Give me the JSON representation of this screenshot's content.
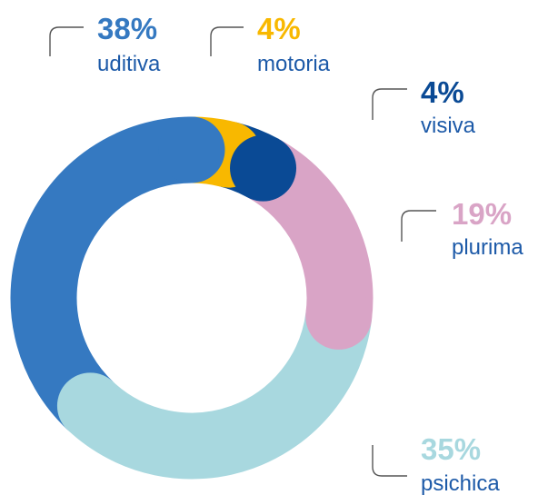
{
  "chart_data": {
    "type": "donut",
    "categories": [
      "uditiva",
      "motoria",
      "visiva",
      "plurima",
      "psichica"
    ],
    "values": [
      38,
      4,
      4,
      19,
      35
    ],
    "value_labels": [
      "38%",
      "4%",
      "4%",
      "19%",
      "35%"
    ],
    "colors": [
      "#3579c1",
      "#f8b800",
      "#0a4a95",
      "#d9a4c6",
      "#a8d8df"
    ]
  }
}
